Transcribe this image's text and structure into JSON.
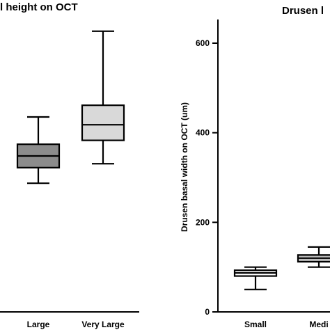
{
  "chart_data": [
    {
      "type": "box",
      "title": "l height on OCT",
      "ylabel": "",
      "categories": [
        "Large",
        "Very Large"
      ],
      "boxes": [
        {
          "category": "Large",
          "min": 33,
          "q1": 37,
          "median": 40,
          "q3": 43,
          "max": 50,
          "color": "#8c8c8c"
        },
        {
          "category": "Very Large",
          "min": 38,
          "q1": 44,
          "median": 48,
          "q3": 53,
          "max": 72,
          "color": "#d9d9d9"
        }
      ],
      "ylim": [
        0,
        80
      ]
    },
    {
      "type": "box",
      "title": "Drusen l",
      "ylabel": "Drusen basal width on OCT (um)",
      "categories": [
        "Small",
        "Medi"
      ],
      "yticks": [
        0,
        200,
        400,
        600
      ],
      "ylim": [
        0,
        650
      ],
      "boxes": [
        {
          "category": "Small",
          "min": 50,
          "q1": 80,
          "median": 87,
          "q3": 93,
          "max": 100,
          "color": "#ffffff"
        },
        {
          "category": "Medi",
          "min": 100,
          "q1": 112,
          "median": 120,
          "q3": 127,
          "max": 145,
          "color": "#bfbfbf"
        }
      ]
    }
  ]
}
